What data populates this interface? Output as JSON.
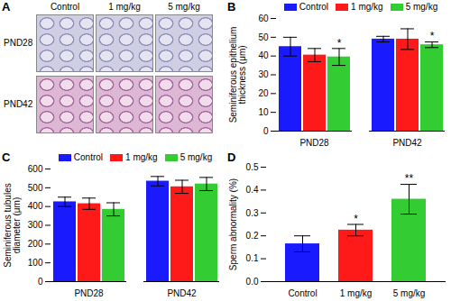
{
  "micrographs": {
    "label": "A",
    "columns": [
      "Control",
      "1 mg/kg",
      "5 mg/kg"
    ],
    "rows": [
      "PND28",
      "PND42"
    ]
  },
  "chart_data": [
    {
      "type": "bar",
      "title": "B",
      "y_label": "Seminiferous epithelium\nthickness (μm)",
      "categories": [
        "PND28",
        "PND42"
      ],
      "series": [
        {
          "name": "Control",
          "color": "#1a1aff",
          "values": [
            45,
            49
          ],
          "errors": [
            5,
            1.5
          ]
        },
        {
          "name": "1 mg/kg",
          "color": "#ff1a1a",
          "values": [
            40.5,
            49
          ],
          "errors": [
            3.5,
            5.5
          ]
        },
        {
          "name": "5 mg/kg",
          "color": "#33cc33",
          "values": [
            39.5,
            46
          ],
          "errors": [
            4.5,
            1.5
          ]
        }
      ],
      "annotations": [
        {
          "category": "PND28",
          "series": "5 mg/kg",
          "text": "*"
        },
        {
          "category": "PND42",
          "series": "5 mg/kg",
          "text": "*"
        }
      ],
      "ylim": [
        0,
        60
      ],
      "yticks": [
        0,
        10,
        20,
        30,
        40,
        50,
        60
      ],
      "legend": "top"
    },
    {
      "type": "bar",
      "title": "C",
      "y_label": "Seminiferous tubules\ndiameter (μm)",
      "categories": [
        "PND28",
        "PND42"
      ],
      "series": [
        {
          "name": "Control",
          "color": "#1a1aff",
          "values": [
            425,
            535
          ],
          "errors": [
            25,
            25
          ]
        },
        {
          "name": "1 mg/kg",
          "color": "#ff1a1a",
          "values": [
            415,
            505
          ],
          "errors": [
            30,
            35
          ]
        },
        {
          "name": "5 mg/kg",
          "color": "#33cc33",
          "values": [
            385,
            520
          ],
          "errors": [
            35,
            35
          ]
        }
      ],
      "ylim": [
        0,
        600
      ],
      "yticks": [
        0,
        100,
        200,
        300,
        400,
        500,
        600
      ],
      "legend": "top"
    },
    {
      "type": "bar",
      "title": "D",
      "y_label": "Sperm abnormality (%)",
      "categories": [
        "Control",
        "1 mg/kg",
        "5 mg/kg"
      ],
      "values": [
        0.165,
        0.225,
        0.36
      ],
      "errors": [
        0.035,
        0.025,
        0.065
      ],
      "colors": [
        "#1a1aff",
        "#ff1a1a",
        "#33cc33"
      ],
      "annotations": [
        {
          "category": "1 mg/kg",
          "text": "*"
        },
        {
          "category": "5 mg/kg",
          "text": "**"
        }
      ],
      "ylim": [
        0,
        0.5
      ],
      "yticks": [
        {
          "value": 0,
          "label": "0.0"
        },
        0.1,
        0.2,
        0.3,
        0.4,
        0.5
      ]
    }
  ]
}
